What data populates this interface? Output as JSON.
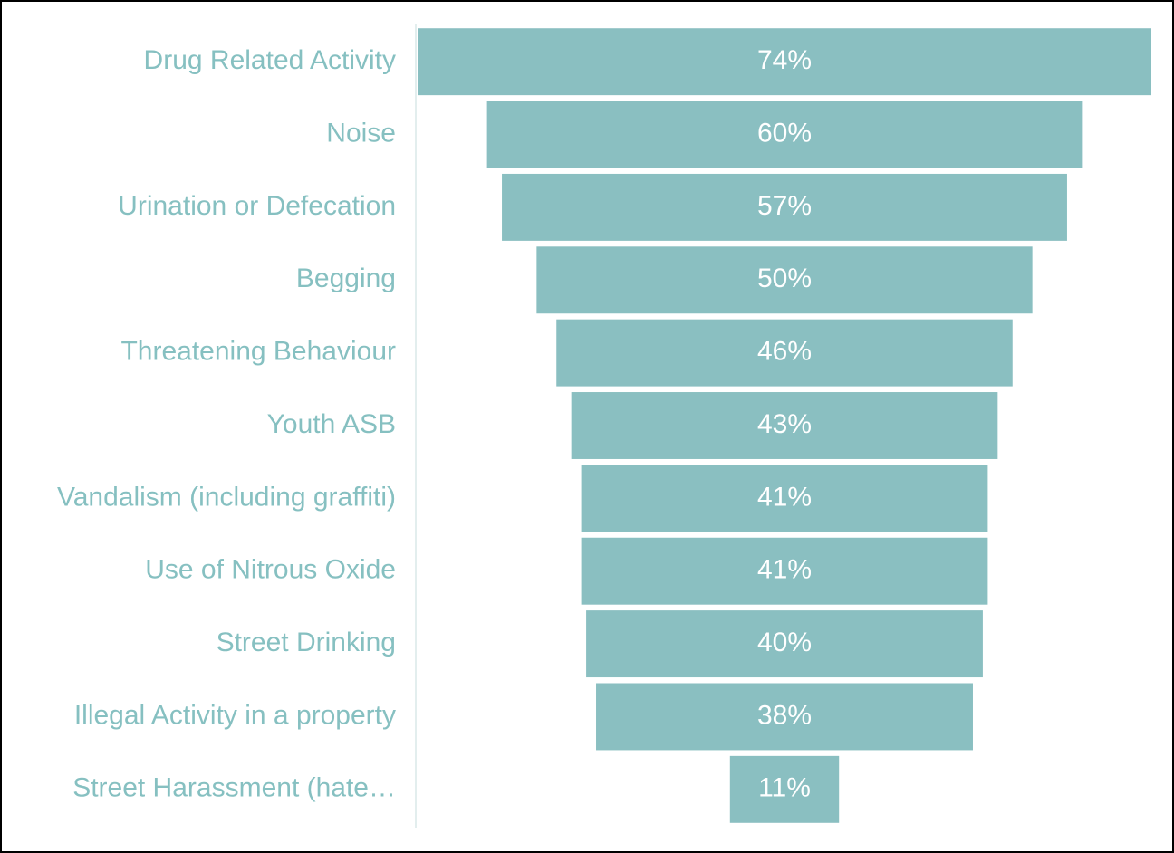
{
  "chart_data": {
    "type": "funnel",
    "categories": [
      "Drug Related Activity",
      "Noise",
      "Urination or Defecation",
      "Begging",
      "Threatening Behaviour",
      "Youth ASB",
      "Vandalism (including graffiti)",
      "Use of Nitrous Oxide",
      "Street Drinking",
      "Illegal Activity in a property",
      "Street Harassment (hate…"
    ],
    "values": [
      74,
      60,
      57,
      50,
      46,
      43,
      41,
      41,
      40,
      38,
      11
    ],
    "value_labels": [
      "74%",
      "60%",
      "57%",
      "50%",
      "46%",
      "43%",
      "41%",
      "41%",
      "40%",
      "38%",
      "11%"
    ],
    "color": "#8abfc1"
  }
}
